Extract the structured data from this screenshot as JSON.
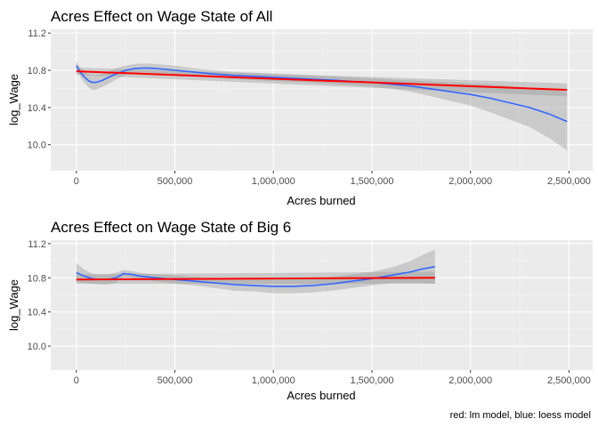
{
  "figure": {
    "caption": "red: lm model, blue: loess model"
  },
  "chart_data": [
    {
      "type": "line",
      "title": "Acres Effect on Wage State of All",
      "xlabel": "Acres burned",
      "ylabel": "log_Wage",
      "xlim": [
        -130000,
        2620000
      ],
      "ylim": [
        9.72,
        11.24
      ],
      "x_ticks": [
        0,
        500000,
        1000000,
        1500000,
        2000000,
        2500000
      ],
      "x_tick_labels": [
        "0",
        "500,000",
        "1,000,000",
        "1,500,000",
        "2,000,000",
        "2,500,000"
      ],
      "y_ticks": [
        10.0,
        10.4,
        10.8,
        11.2
      ],
      "y_tick_labels": [
        "10.0",
        "10.4",
        "10.8",
        "11.2"
      ],
      "grid": true,
      "series": [
        {
          "model": "lm",
          "color": "#ff0000",
          "x": [
            0,
            2490000
          ],
          "y": [
            10.79,
            10.59
          ],
          "ci_upper": [
            10.83,
            10.66
          ],
          "ci_lower": [
            10.75,
            10.52
          ]
        },
        {
          "model": "loess",
          "color": "#3366ff",
          "x": [
            0,
            20000,
            40000,
            60000,
            80000,
            100000,
            130000,
            160000,
            200000,
            250000,
            300000,
            350000,
            400000,
            500000,
            600000,
            700000,
            800000,
            900000,
            1000000,
            1100000,
            1200000,
            1300000,
            1400000,
            1500000,
            1600000,
            1700000,
            1800000,
            1900000,
            2000000,
            2100000,
            2200000,
            2300000,
            2400000,
            2490000
          ],
          "y": [
            10.85,
            10.78,
            10.73,
            10.69,
            10.67,
            10.67,
            10.69,
            10.72,
            10.76,
            10.8,
            10.82,
            10.825,
            10.82,
            10.8,
            10.78,
            10.76,
            10.745,
            10.735,
            10.725,
            10.715,
            10.705,
            10.695,
            10.68,
            10.67,
            10.65,
            10.63,
            10.6,
            10.57,
            10.54,
            10.5,
            10.45,
            10.4,
            10.33,
            10.25
          ],
          "ci_upper": [
            10.9,
            10.83,
            10.79,
            10.76,
            10.75,
            10.75,
            10.76,
            10.79,
            10.82,
            10.85,
            10.87,
            10.875,
            10.87,
            10.85,
            10.82,
            10.8,
            10.785,
            10.775,
            10.765,
            10.755,
            10.745,
            10.735,
            10.72,
            10.715,
            10.7,
            10.69,
            10.68,
            10.67,
            10.66,
            10.65,
            10.63,
            10.61,
            10.59,
            10.57
          ],
          "ci_lower": [
            10.8,
            10.73,
            10.67,
            10.62,
            10.59,
            10.59,
            10.62,
            10.65,
            10.7,
            10.75,
            10.77,
            10.775,
            10.77,
            10.75,
            10.74,
            10.72,
            10.705,
            10.695,
            10.685,
            10.675,
            10.665,
            10.655,
            10.64,
            10.625,
            10.6,
            10.57,
            10.52,
            10.47,
            10.42,
            10.35,
            10.27,
            10.19,
            10.07,
            9.94
          ]
        }
      ]
    },
    {
      "type": "line",
      "title": "Acres Effect on Wage State of Big 6",
      "xlabel": "Acres burned",
      "ylabel": "log_Wage",
      "xlim": [
        -130000,
        2620000
      ],
      "ylim": [
        9.72,
        11.24
      ],
      "x_ticks": [
        0,
        500000,
        1000000,
        1500000,
        2000000,
        2500000
      ],
      "x_tick_labels": [
        "0",
        "500,000",
        "1,000,000",
        "1,500,000",
        "2,000,000",
        "2,500,000"
      ],
      "y_ticks": [
        10.0,
        10.4,
        10.8,
        11.2
      ],
      "y_tick_labels": [
        "10.0",
        "10.4",
        "10.8",
        "11.2"
      ],
      "grid": true,
      "series": [
        {
          "model": "lm",
          "color": "#ff0000",
          "x": [
            0,
            1820000
          ],
          "y": [
            10.78,
            10.8
          ],
          "ci_upper": [
            10.84,
            10.87
          ],
          "ci_lower": [
            10.73,
            10.73
          ]
        },
        {
          "model": "loess",
          "color": "#3366ff",
          "x": [
            0,
            40000,
            80000,
            120000,
            160000,
            200000,
            240000,
            280000,
            320000,
            400000,
            500000,
            600000,
            700000,
            800000,
            900000,
            1000000,
            1100000,
            1200000,
            1300000,
            1400000,
            1500000,
            1600000,
            1700000,
            1750000,
            1820000
          ],
          "y": [
            10.86,
            10.82,
            10.79,
            10.78,
            10.78,
            10.8,
            10.85,
            10.84,
            10.82,
            10.8,
            10.78,
            10.76,
            10.74,
            10.72,
            10.71,
            10.7,
            10.7,
            10.71,
            10.73,
            10.76,
            10.79,
            10.83,
            10.87,
            10.9,
            10.93
          ],
          "ci_upper": [
            10.97,
            10.9,
            10.85,
            10.84,
            10.84,
            10.86,
            10.89,
            10.88,
            10.86,
            10.84,
            10.83,
            10.81,
            10.8,
            10.79,
            10.78,
            10.78,
            10.78,
            10.79,
            10.81,
            10.84,
            10.87,
            10.92,
            11.0,
            11.06,
            11.13
          ],
          "ci_lower": [
            10.75,
            10.74,
            10.73,
            10.72,
            10.72,
            10.74,
            10.81,
            10.8,
            10.78,
            10.76,
            10.73,
            10.71,
            10.68,
            10.65,
            10.64,
            10.62,
            10.62,
            10.63,
            10.65,
            10.68,
            10.71,
            10.74,
            10.74,
            10.74,
            10.73
          ]
        }
      ]
    }
  ]
}
